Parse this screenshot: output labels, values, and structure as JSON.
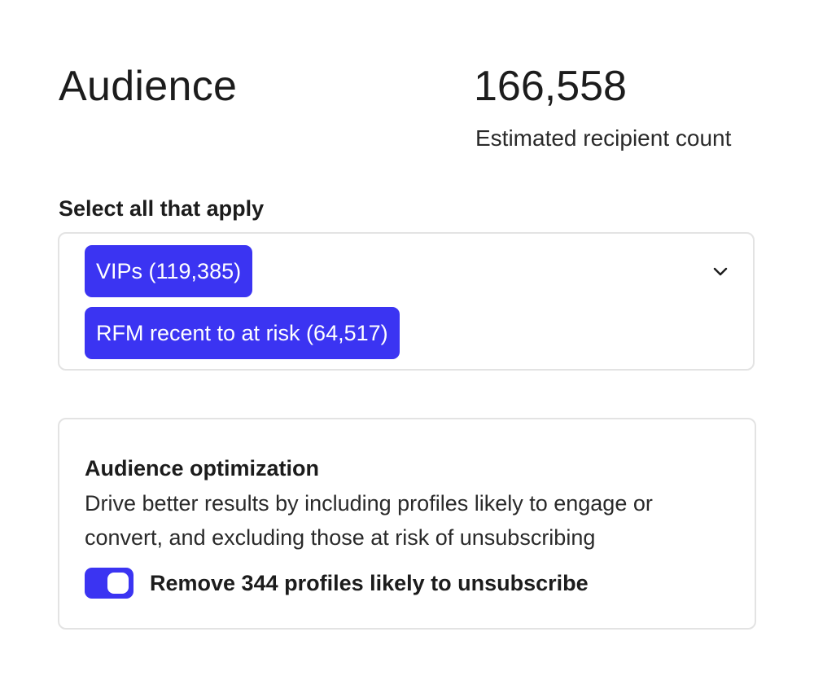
{
  "header": {
    "title": "Audience",
    "recipient_count": "166,558",
    "recipient_count_label": "Estimated recipient count"
  },
  "segments": {
    "label": "Select all that apply",
    "selected": [
      "VIPs (119,385)",
      "RFM recent to at risk (64,517)"
    ],
    "dropdown_icon": "chevron-down-icon"
  },
  "optimization": {
    "title": "Audience optimization",
    "description": "Drive better results by including profiles likely to engage or convert, and excluding those at risk of unsubscribing",
    "toggle_label": "Remove 344 profiles likely to unsubscribe",
    "toggle_on": true
  },
  "colors": {
    "accent": "#3b34f2",
    "border": "#e3e3e3",
    "text": "#1c1c1c"
  }
}
